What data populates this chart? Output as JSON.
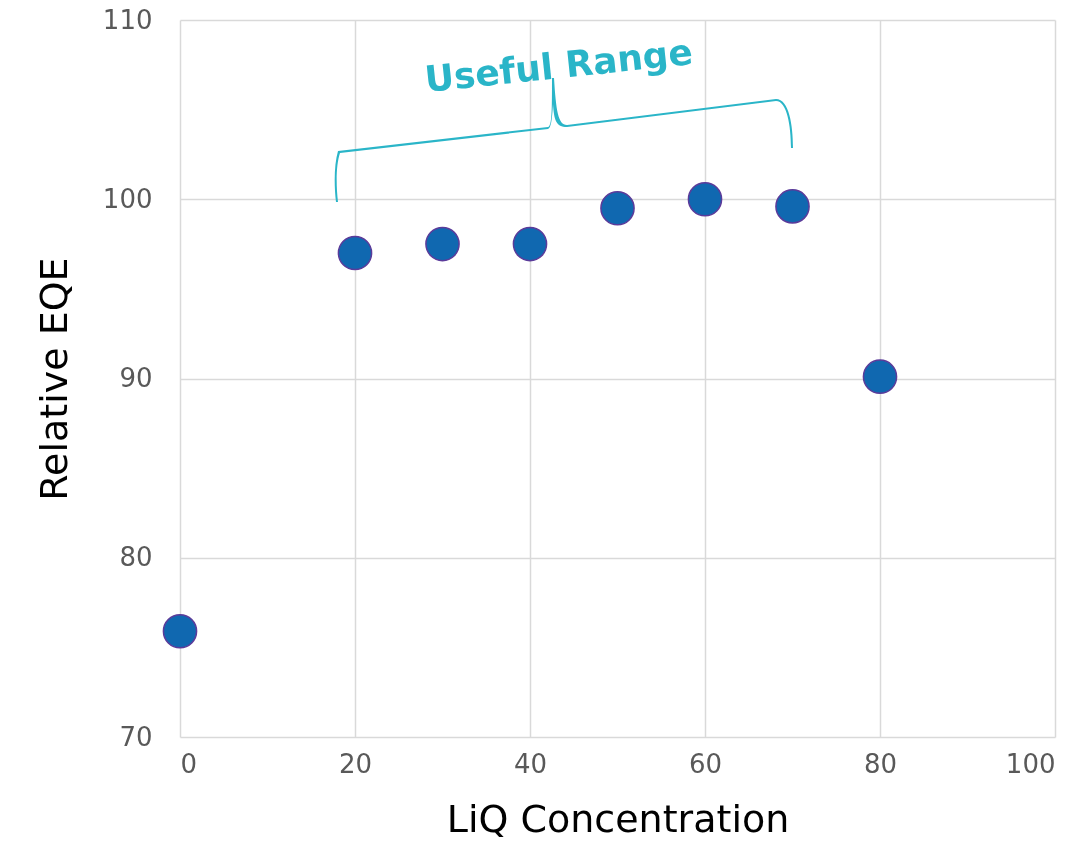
{
  "chart_data": {
    "type": "scatter",
    "xlabel": "LiQ Concentration",
    "ylabel": "Relative EQE",
    "x": [
      0,
      20,
      30,
      40,
      50,
      60,
      70,
      80
    ],
    "series": [
      {
        "color": "#1068b0",
        "values": [
          75.9,
          97.0,
          97.5,
          97.5,
          99.5,
          100.0,
          99.6,
          90.1
        ]
      }
    ],
    "xlim": [
      0,
      100
    ],
    "xticks": [
      0,
      20,
      40,
      60,
      80,
      100
    ],
    "ylim": [
      70,
      110
    ],
    "yticks": [
      70,
      80,
      90,
      100,
      110
    ],
    "grid": true,
    "marker": "circle",
    "annotations": [
      "Useful Range"
    ]
  }
}
